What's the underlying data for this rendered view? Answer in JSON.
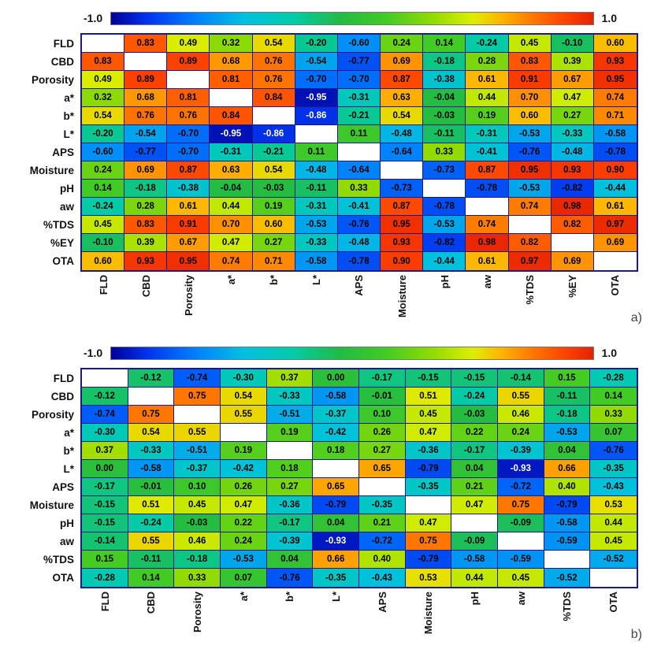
{
  "colormap": {
    "min_label": "-1.0",
    "max_label": "1.0",
    "stops": [
      [
        -1.0,
        "#000099"
      ],
      [
        -0.85,
        "#0033EE"
      ],
      [
        -0.65,
        "#0080FF"
      ],
      [
        -0.45,
        "#00C0E0"
      ],
      [
        -0.25,
        "#00CCAA"
      ],
      [
        -0.05,
        "#22BB44"
      ],
      [
        0.15,
        "#44CC22"
      ],
      [
        0.35,
        "#99DD00"
      ],
      [
        0.5,
        "#DDEE00"
      ],
      [
        0.62,
        "#FFB300"
      ],
      [
        0.75,
        "#FF7700"
      ],
      [
        0.88,
        "#FF4400"
      ],
      [
        1.0,
        "#E62200"
      ]
    ]
  },
  "chart_data": [
    {
      "type": "heatmap",
      "panel_label": "a)",
      "colorbar": {
        "min": -1.0,
        "max": 1.0,
        "min_label": "-1.0",
        "max_label": "1.0"
      },
      "categories": [
        "FLD",
        "CBD",
        "Porosity",
        "a*",
        "b*",
        "L*",
        "APS",
        "Moisture",
        "pH",
        "aw",
        "%TDS",
        "%EY",
        "OTA"
      ],
      "matrix": [
        [
          null,
          0.83,
          0.49,
          0.32,
          0.54,
          -0.2,
          -0.6,
          0.24,
          0.14,
          -0.24,
          0.45,
          -0.1,
          0.6
        ],
        [
          0.83,
          null,
          0.89,
          0.68,
          0.76,
          -0.54,
          -0.77,
          0.69,
          -0.18,
          0.28,
          0.83,
          0.39,
          0.93
        ],
        [
          0.49,
          0.89,
          null,
          0.81,
          0.76,
          -0.7,
          -0.7,
          0.87,
          -0.38,
          0.61,
          0.91,
          0.67,
          0.95
        ],
        [
          0.32,
          0.68,
          0.81,
          null,
          0.84,
          -0.95,
          -0.31,
          0.63,
          -0.04,
          0.44,
          0.7,
          0.47,
          0.74
        ],
        [
          0.54,
          0.76,
          0.76,
          0.84,
          null,
          -0.86,
          -0.21,
          0.54,
          -0.03,
          0.19,
          0.6,
          0.27,
          0.71
        ],
        [
          -0.2,
          -0.54,
          -0.7,
          -0.95,
          -0.86,
          null,
          0.11,
          -0.48,
          -0.11,
          -0.31,
          -0.53,
          -0.33,
          -0.58
        ],
        [
          -0.6,
          -0.77,
          -0.7,
          -0.31,
          -0.21,
          0.11,
          null,
          -0.64,
          0.33,
          -0.41,
          -0.76,
          -0.48,
          -0.78
        ],
        [
          0.24,
          0.69,
          0.87,
          0.63,
          0.54,
          -0.48,
          -0.64,
          null,
          -0.73,
          0.87,
          0.95,
          0.93,
          0.9
        ],
        [
          0.14,
          -0.18,
          -0.38,
          -0.04,
          -0.03,
          -0.11,
          0.33,
          -0.73,
          null,
          -0.78,
          -0.53,
          -0.82,
          -0.44
        ],
        [
          -0.24,
          0.28,
          0.61,
          0.44,
          0.19,
          -0.31,
          -0.41,
          0.87,
          -0.78,
          null,
          0.74,
          0.98,
          0.61
        ],
        [
          0.45,
          0.83,
          0.91,
          0.7,
          0.6,
          -0.53,
          -0.76,
          0.95,
          -0.53,
          0.74,
          null,
          0.82,
          0.97
        ],
        [
          -0.1,
          0.39,
          0.67,
          0.47,
          0.27,
          -0.33,
          -0.48,
          0.93,
          -0.82,
          0.98,
          0.82,
          null,
          0.69
        ],
        [
          0.6,
          0.93,
          0.95,
          0.74,
          0.71,
          -0.58,
          -0.78,
          0.9,
          -0.44,
          0.61,
          0.97,
          0.69,
          null
        ]
      ]
    },
    {
      "type": "heatmap",
      "panel_label": "b)",
      "colorbar": {
        "min": -1.0,
        "max": 1.0,
        "min_label": "-1.0",
        "max_label": "1.0"
      },
      "categories": [
        "FLD",
        "CBD",
        "Porosity",
        "a*",
        "b*",
        "L*",
        "APS",
        "Moisture",
        "pH",
        "aw",
        "%TDS",
        "OTA"
      ],
      "matrix": [
        [
          null,
          -0.12,
          -0.74,
          -0.3,
          0.37,
          0.0,
          -0.17,
          -0.15,
          -0.15,
          -0.14,
          0.15,
          -0.28
        ],
        [
          -0.12,
          null,
          0.75,
          0.54,
          -0.33,
          -0.58,
          -0.01,
          0.51,
          -0.24,
          0.55,
          -0.11,
          0.14
        ],
        [
          -0.74,
          0.75,
          null,
          0.55,
          -0.51,
          -0.37,
          0.1,
          0.45,
          -0.03,
          0.46,
          -0.18,
          0.33
        ],
        [
          -0.3,
          0.54,
          0.55,
          null,
          0.19,
          -0.42,
          0.26,
          0.47,
          0.22,
          0.24,
          -0.53,
          0.07
        ],
        [
          0.37,
          -0.33,
          -0.51,
          0.19,
          null,
          0.18,
          0.27,
          -0.36,
          -0.17,
          -0.39,
          0.04,
          -0.76
        ],
        [
          0.0,
          -0.58,
          -0.37,
          -0.42,
          0.18,
          null,
          0.65,
          -0.79,
          0.04,
          -0.93,
          0.66,
          -0.35
        ],
        [
          -0.17,
          -0.01,
          0.1,
          0.26,
          0.27,
          0.65,
          null,
          -0.35,
          0.21,
          -0.72,
          0.4,
          -0.43
        ],
        [
          -0.15,
          0.51,
          0.45,
          0.47,
          -0.36,
          -0.79,
          -0.35,
          null,
          0.47,
          0.75,
          -0.79,
          0.53
        ],
        [
          -0.15,
          -0.24,
          -0.03,
          0.22,
          -0.17,
          0.04,
          0.21,
          0.47,
          null,
          -0.09,
          -0.58,
          0.44
        ],
        [
          -0.14,
          0.55,
          0.46,
          0.24,
          -0.39,
          -0.93,
          -0.72,
          0.75,
          -0.09,
          null,
          -0.59,
          0.45
        ],
        [
          0.15,
          -0.11,
          -0.18,
          -0.53,
          0.04,
          0.66,
          0.4,
          -0.79,
          -0.58,
          -0.59,
          null,
          -0.52
        ],
        [
          -0.28,
          0.14,
          0.33,
          0.07,
          -0.76,
          -0.35,
          -0.43,
          0.53,
          0.44,
          0.45,
          -0.52,
          null
        ]
      ]
    }
  ]
}
